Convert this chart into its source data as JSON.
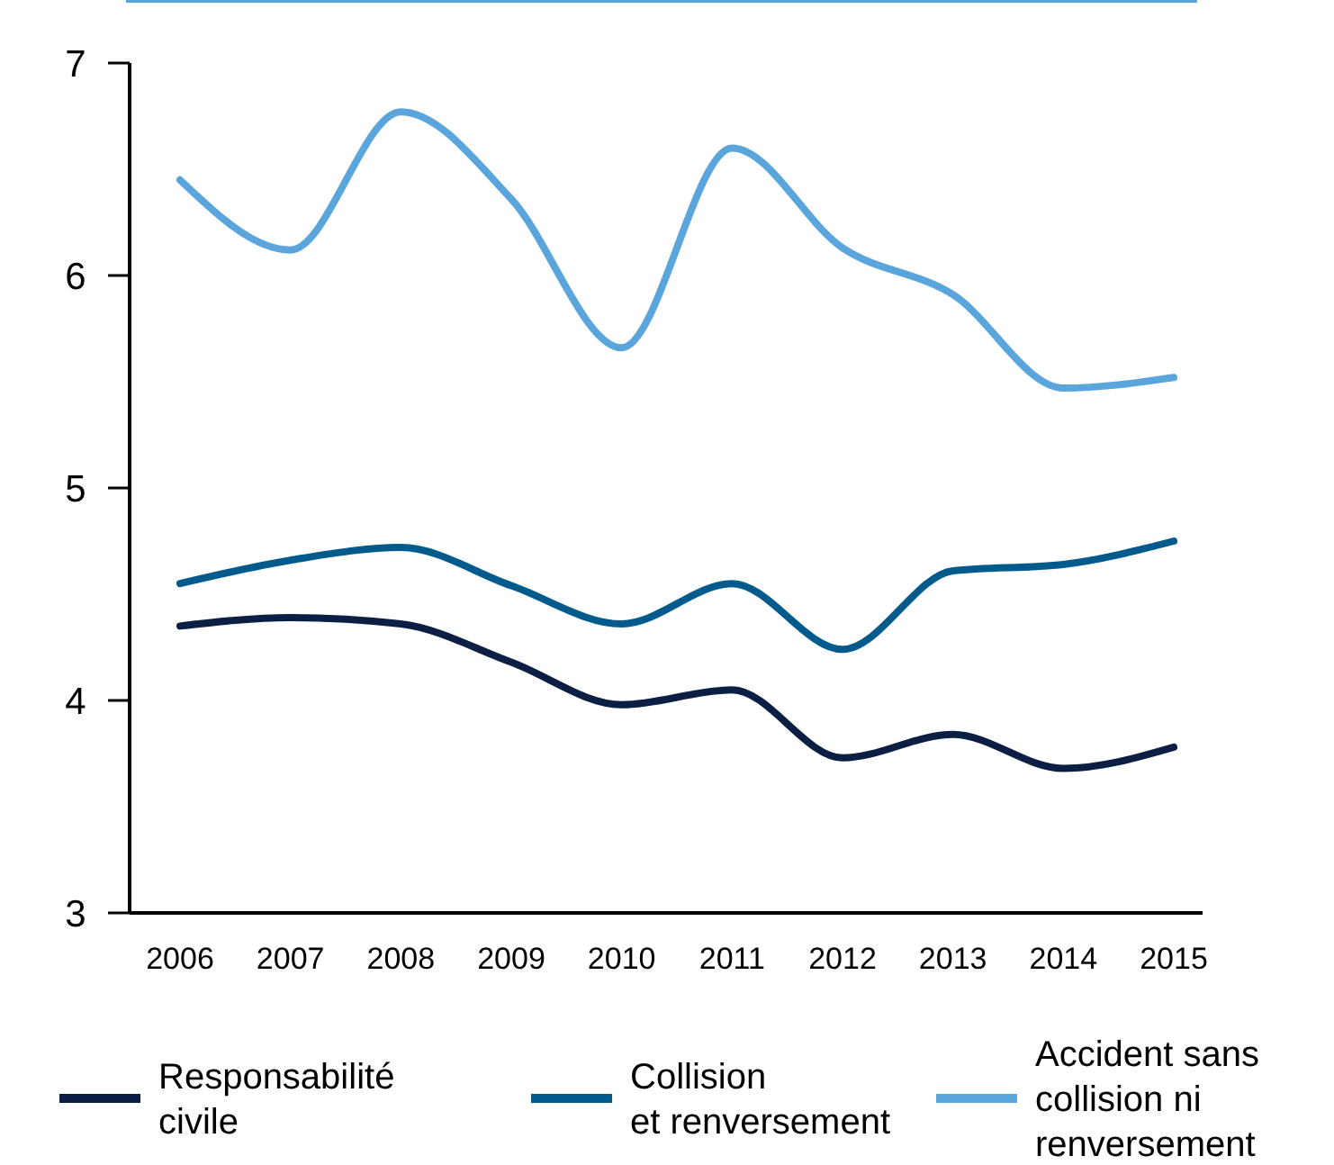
{
  "chart_data": {
    "type": "line",
    "categories": [
      "2006",
      "2007",
      "2008",
      "2009",
      "2010",
      "2011",
      "2012",
      "2013",
      "2014",
      "2015"
    ],
    "series": [
      {
        "name": "Responsabilité\ncivile",
        "color": "#0b1f45",
        "values": [
          4.35,
          4.39,
          4.36,
          4.18,
          3.98,
          4.05,
          3.73,
          3.84,
          3.68,
          3.78
        ]
      },
      {
        "name": "Collision\net renversement",
        "color": "#005a8c",
        "values": [
          4.55,
          4.66,
          4.72,
          4.54,
          4.36,
          4.55,
          4.24,
          4.61,
          4.64,
          4.75
        ]
      },
      {
        "name": "Accident sans\ncollision ni\nrenversement",
        "color": "#5aa6dc",
        "values": [
          6.45,
          6.12,
          6.77,
          6.36,
          5.66,
          6.6,
          6.13,
          5.91,
          5.47,
          5.52
        ]
      }
    ],
    "ylim": [
      3,
      7
    ],
    "yticks": [
      3,
      4,
      5,
      6,
      7
    ],
    "grid": false,
    "legend": "bottom",
    "marker": "none",
    "line_style": "solid"
  }
}
